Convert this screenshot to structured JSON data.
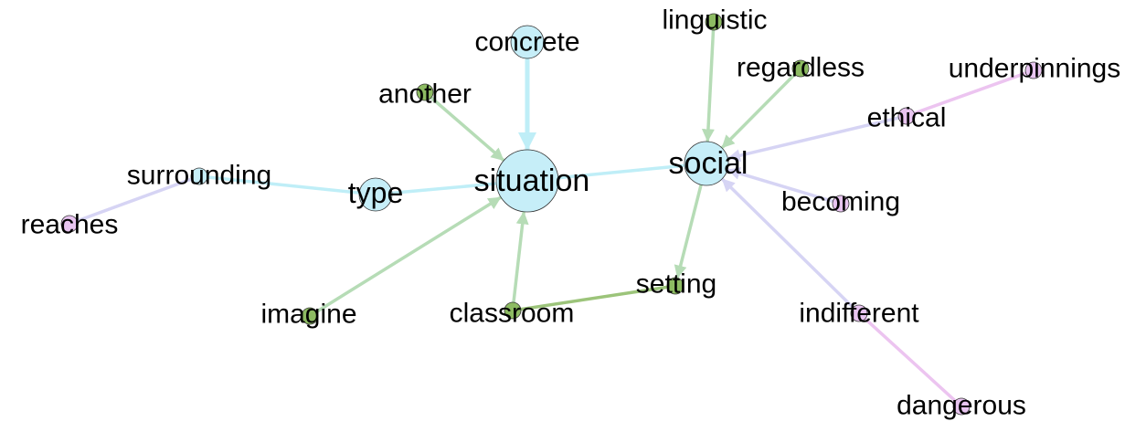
{
  "colors": {
    "background": "#ffffff",
    "blue_node": "#c6eef8",
    "green_node": "#8dbb62",
    "purple_node": "#e8c4f0",
    "blue_edge": "#bfeef7",
    "green_edge": "#b6dcb6",
    "dark_green_edge": "#9cc47a",
    "lavender_edge": "#d6d4f4",
    "pink_edge": "#ecc4f0",
    "node_outline": "#333333"
  },
  "nodes": [
    {
      "id": "situation",
      "label": "situation",
      "group": "blue",
      "importance": "large"
    },
    {
      "id": "social",
      "label": "social",
      "group": "blue",
      "importance": "medium"
    },
    {
      "id": "type",
      "label": "type",
      "group": "blue",
      "importance": "small"
    },
    {
      "id": "concrete",
      "label": "concrete",
      "group": "blue",
      "importance": "small"
    },
    {
      "id": "surrounding",
      "label": "surrounding",
      "group": "blue",
      "importance": "tiny"
    },
    {
      "id": "another",
      "label": "another",
      "group": "green",
      "importance": "tiny"
    },
    {
      "id": "imagine",
      "label": "imagine",
      "group": "green",
      "importance": "tiny"
    },
    {
      "id": "classroom",
      "label": "classroom",
      "group": "green",
      "importance": "tiny"
    },
    {
      "id": "setting",
      "label": "setting",
      "group": "green",
      "importance": "tiny"
    },
    {
      "id": "linguistic",
      "label": "linguistic",
      "group": "green",
      "importance": "tiny"
    },
    {
      "id": "regardless",
      "label": "regardless",
      "group": "green",
      "importance": "tiny"
    },
    {
      "id": "ethical",
      "label": "ethical",
      "group": "purple",
      "importance": "tiny"
    },
    {
      "id": "underpinnings",
      "label": "underpinnings",
      "group": "purple",
      "importance": "tiny"
    },
    {
      "id": "becoming",
      "label": "becoming",
      "group": "purple",
      "importance": "tiny"
    },
    {
      "id": "indifferent",
      "label": "indifferent",
      "group": "purple",
      "importance": "tiny"
    },
    {
      "id": "dangerous",
      "label": "dangerous",
      "group": "purple",
      "importance": "tiny"
    },
    {
      "id": "reaches",
      "label": "reaches",
      "group": "purple",
      "importance": "tiny"
    }
  ],
  "edges": [
    {
      "from": "concrete",
      "to": "situation",
      "color": "blue_edge",
      "weight": "heavy",
      "arrow": true
    },
    {
      "from": "another",
      "to": "situation",
      "color": "green_edge",
      "weight": "normal",
      "arrow": true
    },
    {
      "from": "imagine",
      "to": "situation",
      "color": "green_edge",
      "weight": "normal",
      "arrow": true
    },
    {
      "from": "classroom",
      "to": "situation",
      "color": "green_edge",
      "weight": "normal",
      "arrow": true
    },
    {
      "from": "type",
      "to": "situation",
      "color": "blue_edge",
      "weight": "normal",
      "arrow": false
    },
    {
      "from": "situation",
      "to": "social",
      "color": "blue_edge",
      "weight": "normal",
      "arrow": false
    },
    {
      "from": "surrounding",
      "to": "type",
      "color": "blue_edge",
      "weight": "normal",
      "arrow": false
    },
    {
      "from": "reaches",
      "to": "surrounding",
      "color": "lavender_edge",
      "weight": "normal",
      "arrow": false
    },
    {
      "from": "linguistic",
      "to": "social",
      "color": "green_edge",
      "weight": "normal",
      "arrow": true
    },
    {
      "from": "regardless",
      "to": "social",
      "color": "green_edge",
      "weight": "normal",
      "arrow": true
    },
    {
      "from": "ethical",
      "to": "social",
      "color": "lavender_edge",
      "weight": "normal",
      "arrow": true
    },
    {
      "from": "underpinnings",
      "to": "ethical",
      "color": "pink_edge",
      "weight": "normal",
      "arrow": false
    },
    {
      "from": "becoming",
      "to": "social",
      "color": "lavender_edge",
      "weight": "normal",
      "arrow": true
    },
    {
      "from": "indifferent",
      "to": "social",
      "color": "lavender_edge",
      "weight": "normal",
      "arrow": true
    },
    {
      "from": "dangerous",
      "to": "indifferent",
      "color": "pink_edge",
      "weight": "normal",
      "arrow": false
    },
    {
      "from": "social",
      "to": "setting",
      "color": "green_edge",
      "weight": "normal",
      "arrow": true
    },
    {
      "from": "classroom",
      "to": "setting",
      "color": "dark_green_edge",
      "weight": "normal",
      "arrow": false
    }
  ]
}
